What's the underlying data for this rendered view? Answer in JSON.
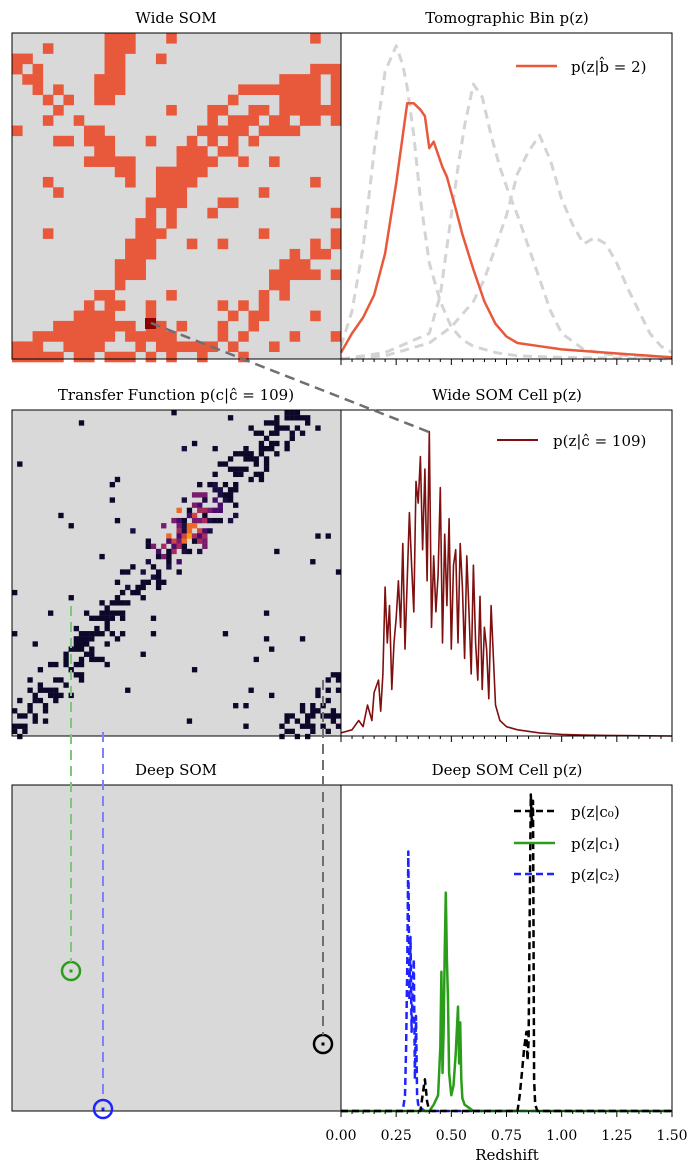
{
  "panels": {
    "wide_som": {
      "title": "Wide SOM"
    },
    "tomo_bin": {
      "title": "Tomographic Bin p(z)"
    },
    "transfer": {
      "title": "Transfer Function p(c|ĉ = 109)"
    },
    "wide_cell": {
      "title": "Wide SOM Cell p(z)"
    },
    "deep_som": {
      "title": "Deep SOM"
    },
    "deep_cell": {
      "title": "Deep SOM Cell p(z)"
    }
  },
  "colors": {
    "som_background": "#d9d9d9",
    "bin_cells": "#e8593c",
    "selected_cell": "#8b0000",
    "wide_cell_line": "#7f1010",
    "ghost_lines": "#d4d4d4",
    "c0": "#000000",
    "c1": "#2a9d1a",
    "c2": "#1f24ff",
    "connector": "#707070"
  },
  "x_axis": {
    "label": "Redshift",
    "ticks": [
      "0.00",
      "0.25",
      "0.50",
      "0.75",
      "1.00",
      "1.25",
      "1.50"
    ],
    "range": [
      0,
      1.5
    ]
  },
  "chart_data": [
    {
      "type": "line",
      "title": "Tomographic Bin p(z)",
      "xlim": [
        0,
        1.5
      ],
      "series": [
        {
          "name": "p(z|b̂ = 2)",
          "style": "solid",
          "x": [
            0,
            0.05,
            0.1,
            0.15,
            0.2,
            0.25,
            0.28,
            0.3,
            0.33,
            0.36,
            0.38,
            0.4,
            0.42,
            0.44,
            0.46,
            0.48,
            0.5,
            0.52,
            0.55,
            0.6,
            0.65,
            0.7,
            0.75,
            0.8,
            0.9,
            1.0,
            1.1,
            1.2,
            1.3,
            1.4,
            1.5
          ],
          "y": [
            0.02,
            0.08,
            0.13,
            0.2,
            0.33,
            0.55,
            0.7,
            0.8,
            0.8,
            0.78,
            0.76,
            0.66,
            0.68,
            0.64,
            0.6,
            0.57,
            0.52,
            0.47,
            0.39,
            0.28,
            0.18,
            0.11,
            0.07,
            0.05,
            0.04,
            0.03,
            0.025,
            0.02,
            0.015,
            0.01,
            0.005
          ]
        },
        {
          "style": "dashed",
          "x": [
            0,
            0.05,
            0.1,
            0.15,
            0.2,
            0.25,
            0.28,
            0.3,
            0.33,
            0.36,
            0.4,
            0.45,
            0.5,
            0.55,
            0.6,
            0.7,
            0.8,
            1.0,
            1.5
          ],
          "y": [
            0.04,
            0.15,
            0.35,
            0.65,
            0.9,
            0.98,
            0.92,
            0.85,
            0.7,
            0.5,
            0.3,
            0.18,
            0.1,
            0.06,
            0.04,
            0.02,
            0.01,
            0.005,
            0
          ]
        },
        {
          "style": "dashed",
          "x": [
            0,
            0.2,
            0.4,
            0.45,
            0.5,
            0.53,
            0.56,
            0.6,
            0.64,
            0.68,
            0.72,
            0.76,
            0.8,
            0.85,
            0.9,
            0.95,
            1.0,
            1.1,
            1.2,
            1.3,
            1.5
          ],
          "y": [
            0,
            0.02,
            0.08,
            0.2,
            0.45,
            0.6,
            0.73,
            0.86,
            0.82,
            0.7,
            0.6,
            0.52,
            0.45,
            0.35,
            0.25,
            0.15,
            0.08,
            0.03,
            0.015,
            0.01,
            0.005
          ]
        },
        {
          "style": "dashed",
          "x": [
            0,
            0.2,
            0.4,
            0.5,
            0.6,
            0.65,
            0.7,
            0.75,
            0.8,
            0.85,
            0.9,
            0.95,
            1.0,
            1.05,
            1.1,
            1.15,
            1.2,
            1.25,
            1.3,
            1.35,
            1.4,
            1.45,
            1.5
          ],
          "y": [
            0,
            0.01,
            0.05,
            0.1,
            0.18,
            0.25,
            0.35,
            0.45,
            0.58,
            0.65,
            0.7,
            0.62,
            0.5,
            0.42,
            0.36,
            0.38,
            0.36,
            0.3,
            0.22,
            0.15,
            0.08,
            0.04,
            0.02
          ]
        }
      ]
    },
    {
      "type": "line",
      "title": "Wide SOM Cell p(z)",
      "xlim": [
        0,
        1.5
      ],
      "series": [
        {
          "name": "p(z|ĉ = 109)",
          "x": [
            0,
            0.05,
            0.08,
            0.1,
            0.12,
            0.14,
            0.15,
            0.17,
            0.18,
            0.19,
            0.2,
            0.21,
            0.22,
            0.23,
            0.24,
            0.25,
            0.26,
            0.27,
            0.28,
            0.29,
            0.3,
            0.31,
            0.32,
            0.33,
            0.34,
            0.35,
            0.36,
            0.37,
            0.38,
            0.39,
            0.4,
            0.41,
            0.42,
            0.43,
            0.44,
            0.45,
            0.46,
            0.47,
            0.48,
            0.49,
            0.5,
            0.51,
            0.52,
            0.53,
            0.54,
            0.55,
            0.56,
            0.57,
            0.58,
            0.59,
            0.6,
            0.61,
            0.62,
            0.63,
            0.64,
            0.65,
            0.66,
            0.67,
            0.68,
            0.7,
            0.72,
            0.75,
            0.8,
            0.9,
            1.0,
            1.1,
            1.2,
            1.5
          ],
          "y": [
            0.01,
            0.02,
            0.05,
            0.03,
            0.1,
            0.05,
            0.14,
            0.18,
            0.08,
            0.2,
            0.48,
            0.3,
            0.42,
            0.15,
            0.3,
            0.38,
            0.5,
            0.35,
            0.62,
            0.28,
            0.5,
            0.72,
            0.55,
            0.4,
            0.82,
            0.75,
            0.9,
            0.6,
            0.86,
            0.5,
            0.98,
            0.35,
            0.58,
            0.4,
            0.52,
            0.8,
            0.3,
            0.65,
            0.42,
            0.7,
            0.28,
            0.55,
            0.6,
            0.3,
            0.62,
            0.48,
            0.25,
            0.58,
            0.4,
            0.2,
            0.55,
            0.3,
            0.18,
            0.45,
            0.15,
            0.35,
            0.28,
            0.12,
            0.42,
            0.1,
            0.05,
            0.03,
            0.02,
            0.01,
            0.005,
            0.003,
            0.002,
            0
          ]
        }
      ]
    },
    {
      "type": "line",
      "title": "Deep SOM Cell p(z)",
      "xlim": [
        0,
        1.5
      ],
      "series": [
        {
          "name": "p(z|c₀)",
          "style": "dashed",
          "x": [
            0,
            0.36,
            0.37,
            0.38,
            0.39,
            0.4,
            0.8,
            0.81,
            0.82,
            0.83,
            0.84,
            0.845,
            0.85,
            0.855,
            0.86,
            0.865,
            0.87,
            0.875,
            0.88,
            0.89,
            1.5
          ],
          "y": [
            0,
            0,
            0.05,
            0.1,
            0.03,
            0,
            0,
            0.05,
            0.12,
            0.2,
            0.25,
            0.16,
            0.22,
            0.62,
            1.0,
            0.9,
            0.98,
            0.1,
            0.02,
            0,
            0
          ]
        },
        {
          "name": "p(z|c₁)",
          "style": "solid",
          "x": [
            0,
            0.4,
            0.42,
            0.44,
            0.45,
            0.455,
            0.46,
            0.465,
            0.47,
            0.475,
            0.48,
            0.485,
            0.49,
            0.5,
            0.51,
            0.52,
            0.53,
            0.535,
            0.54,
            0.545,
            0.55,
            0.56,
            0.58,
            0.6,
            1.5
          ],
          "y": [
            0,
            0,
            0.02,
            0.05,
            0.2,
            0.44,
            0.12,
            0.25,
            0.5,
            0.69,
            0.48,
            0.35,
            0.12,
            0.05,
            0.08,
            0.18,
            0.33,
            0.15,
            0.28,
            0.1,
            0.04,
            0.02,
            0.01,
            0,
            0
          ]
        },
        {
          "name": "p(z|c₂)",
          "style": "dashed",
          "x": [
            0,
            0.28,
            0.29,
            0.295,
            0.3,
            0.305,
            0.31,
            0.315,
            0.32,
            0.325,
            0.33,
            0.335,
            0.34,
            0.345,
            0.35,
            0.36,
            0.38,
            1.5
          ],
          "y": [
            0,
            0,
            0.05,
            0.2,
            0.45,
            0.82,
            0.35,
            0.55,
            0.25,
            0.4,
            0.48,
            0.1,
            0.3,
            0.05,
            0.02,
            0.01,
            0,
            0
          ]
        }
      ]
    }
  ]
}
